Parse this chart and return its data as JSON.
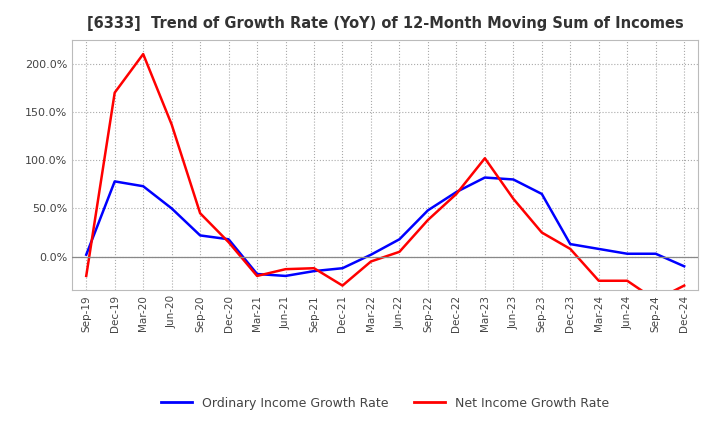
{
  "title": "[6333]  Trend of Growth Rate (YoY) of 12-Month Moving Sum of Incomes",
  "legend_labels": [
    "Ordinary Income Growth Rate",
    "Net Income Growth Rate"
  ],
  "legend_colors": [
    "#0000FF",
    "#FF0000"
  ],
  "x_labels": [
    "Sep-19",
    "Dec-19",
    "Mar-20",
    "Jun-20",
    "Sep-20",
    "Dec-20",
    "Mar-21",
    "Jun-21",
    "Sep-21",
    "Dec-21",
    "Mar-22",
    "Jun-22",
    "Sep-22",
    "Dec-22",
    "Mar-23",
    "Jun-23",
    "Sep-23",
    "Dec-23",
    "Mar-24",
    "Jun-24",
    "Sep-24",
    "Dec-24"
  ],
  "ordinary_income": [
    2.0,
    78.0,
    73.0,
    50.0,
    22.0,
    18.0,
    -18.0,
    -20.0,
    -15.0,
    -12.0,
    2.0,
    18.0,
    48.0,
    67.0,
    82.0,
    80.0,
    65.0,
    13.0,
    8.0,
    3.0,
    3.0,
    -10.0
  ],
  "net_income": [
    -20.0,
    170.0,
    210.0,
    137.0,
    45.0,
    15.0,
    -20.0,
    -13.0,
    -12.0,
    -30.0,
    -5.0,
    5.0,
    38.0,
    65.0,
    102.0,
    60.0,
    25.0,
    8.0,
    -25.0,
    -25.0,
    -45.0,
    -30.0
  ],
  "ylim": [
    -35,
    225
  ],
  "yticks": [
    0,
    50,
    100,
    150,
    200
  ],
  "background_color": "#ffffff",
  "grid_color": "#aaaaaa",
  "line_width": 1.8
}
